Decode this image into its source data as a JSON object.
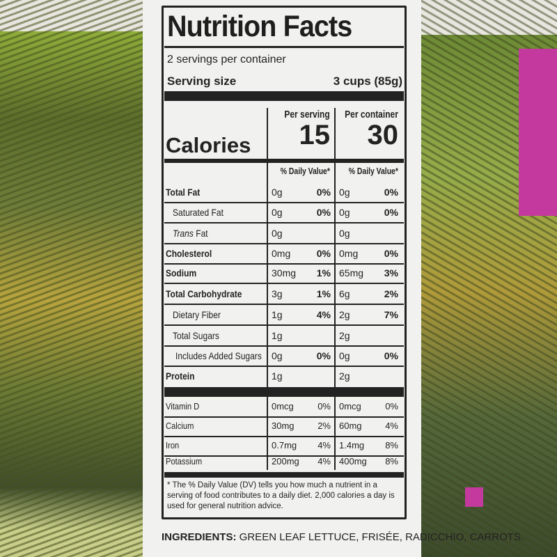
{
  "label": {
    "title": "Nutrition Facts",
    "servings": "2 servings per container",
    "serving_size_label": "Serving size",
    "serving_size_value": "3 cups (85g)",
    "calories_label": "Calories",
    "per_serving_label": "Per serving",
    "per_container_label": "Per container",
    "calories_serving": "15",
    "calories_container": "30",
    "dv_header": "% Daily Value*",
    "rows": [
      {
        "name": "Total Fat",
        "bold": true,
        "s_amt": "0g",
        "s_pct": "0%",
        "c_amt": "0g",
        "c_pct": "0%"
      },
      {
        "name": "Saturated Fat",
        "indent": 1,
        "s_amt": "0g",
        "s_pct": "0%",
        "c_amt": "0g",
        "c_pct": "0%"
      },
      {
        "name": "Trans Fat",
        "italic_prefix": "Trans",
        "indent": 1,
        "s_amt": "0g",
        "s_pct": "",
        "c_amt": "0g",
        "c_pct": ""
      },
      {
        "name": "Cholesterol",
        "bold": true,
        "s_amt": "0mg",
        "s_pct": "0%",
        "c_amt": "0mg",
        "c_pct": "0%"
      },
      {
        "name": "Sodium",
        "bold": true,
        "s_amt": "30mg",
        "s_pct": "1%",
        "c_amt": "65mg",
        "c_pct": "3%"
      },
      {
        "name": "Total Carbohydrate",
        "bold": true,
        "s_amt": "3g",
        "s_pct": "1%",
        "c_amt": "6g",
        "c_pct": "2%"
      },
      {
        "name": "Dietary Fiber",
        "indent": 1,
        "s_amt": "1g",
        "s_pct": "4%",
        "c_amt": "2g",
        "c_pct": "7%"
      },
      {
        "name": "Total Sugars",
        "indent": 1,
        "s_amt": "1g",
        "s_pct": "",
        "c_amt": "2g",
        "c_pct": ""
      },
      {
        "name": "Includes Added Sugars",
        "indent": 2,
        "s_amt": "0g",
        "s_pct": "0%",
        "c_amt": "0g",
        "c_pct": "0%"
      },
      {
        "name": "Protein",
        "bold": true,
        "s_amt": "1g",
        "s_pct": "",
        "c_amt": "2g",
        "c_pct": ""
      },
      {
        "name": "Vitamin D",
        "vit": true,
        "s_amt": "0mcg",
        "s_pct": "0%",
        "c_amt": "0mcg",
        "c_pct": "0%"
      },
      {
        "name": "Calcium",
        "vit": true,
        "s_amt": "30mg",
        "s_pct": "2%",
        "c_amt": "60mg",
        "c_pct": "4%"
      },
      {
        "name": "Iron",
        "vit": true,
        "s_amt": "0.7mg",
        "s_pct": "4%",
        "c_amt": "1.4mg",
        "c_pct": "8%"
      },
      {
        "name": "Potassium",
        "vit": true,
        "s_amt": "200mg",
        "s_pct": "4%",
        "c_amt": "400mg",
        "c_pct": "8%"
      }
    ],
    "footnote": "* The % Daily Value (DV) tells you how much a nutrient in a serving of food contributes to a daily diet. 2,000 calories a day is used for general nutrition advice."
  },
  "ingredients": {
    "label": "INGREDIENTS:",
    "text": " GREEN LEAF LETTUCE, FRISÉE, RADICCHIO, CARROTS."
  },
  "colors": {
    "accent_pink": "#c3399d",
    "leaf_green": "#8fae3a"
  }
}
